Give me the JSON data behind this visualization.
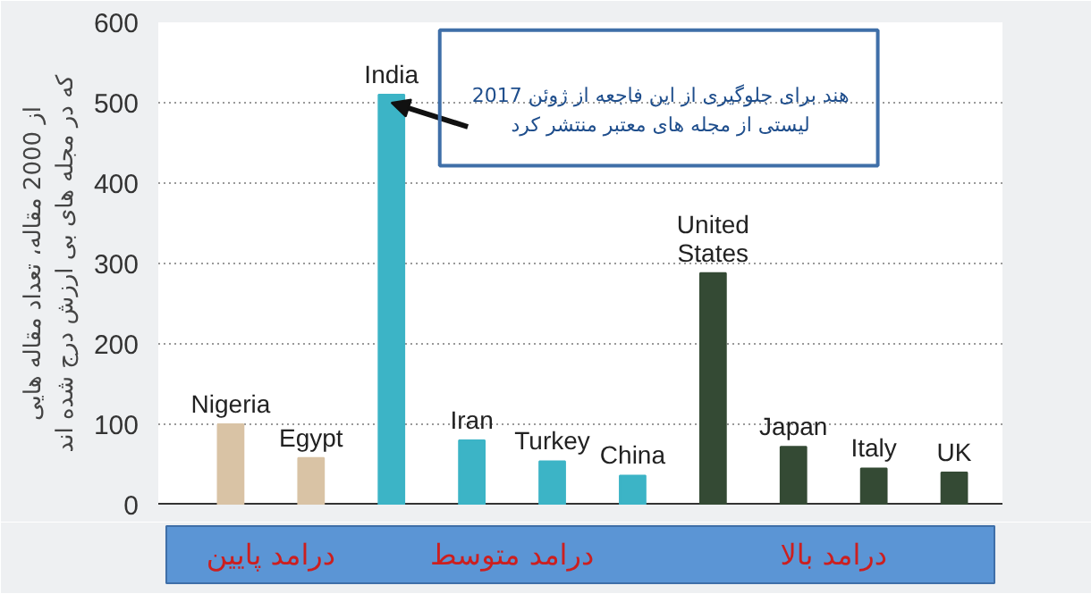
{
  "chart_data": {
    "type": "bar",
    "ylabel": "از 2000 مقاله، تعداد مقاله هایی\nکه در مجله های بی ارزش درج شده اند",
    "categories": [
      "Nigeria",
      "Egypt",
      "India",
      "Iran",
      "Turkey",
      "China",
      "United\nStates",
      "Japan",
      "Italy",
      "UK"
    ],
    "series": [
      {
        "name": "درامد پایین",
        "color": "#d9c3a5",
        "values": [
          100,
          58,
          null,
          null,
          null,
          null,
          null,
          null,
          null,
          null
        ]
      },
      {
        "name": "درامد متوسط",
        "color": "#3cb4c6",
        "values": [
          null,
          null,
          510,
          80,
          54,
          36,
          null,
          null,
          null,
          null
        ]
      },
      {
        "name": "درامد بالا",
        "color": "#344a34",
        "values": [
          null,
          null,
          null,
          null,
          null,
          null,
          288,
          72,
          45,
          40
        ]
      }
    ],
    "annotations": [
      {
        "text": "هند برای جلوگیری از این فاجعه از ژوئن 2017\nلیستی از مجله های معتبر منتشر کرد",
        "x": "India",
        "y": 500
      }
    ],
    "ylim": [
      0,
      600
    ],
    "yticks": [
      0,
      100,
      200,
      300,
      400,
      500,
      600
    ],
    "grid": "y",
    "legend": "bottom"
  }
}
